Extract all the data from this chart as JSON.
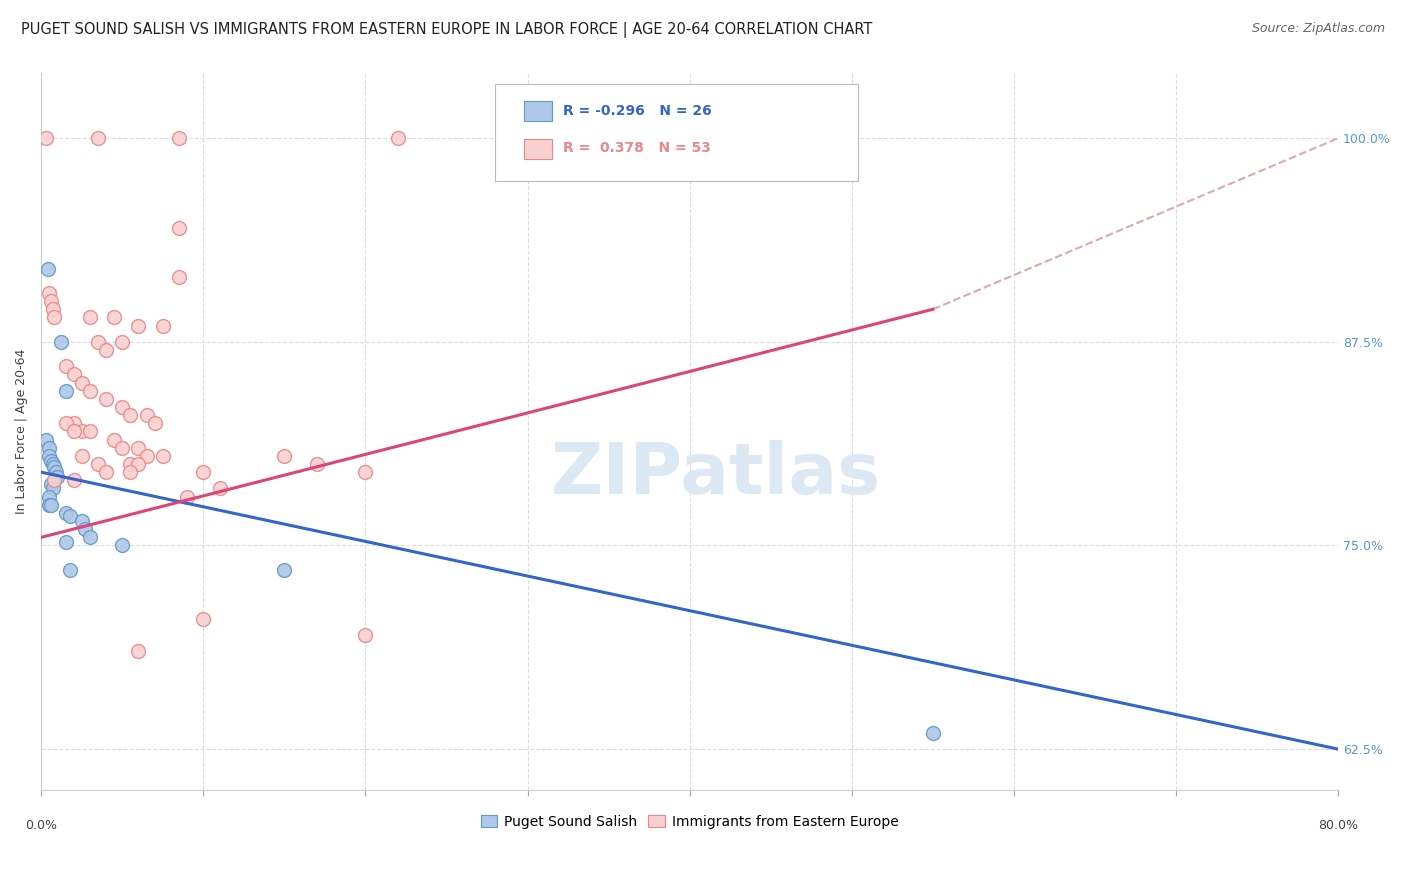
{
  "title": "PUGET SOUND SALISH VS IMMIGRANTS FROM EASTERN EUROPE IN LABOR FORCE | AGE 20-64 CORRELATION CHART",
  "source": "Source: ZipAtlas.com",
  "ylabel": "In Labor Force | Age 20-64",
  "legend_blue_r": "-0.296",
  "legend_blue_n": "26",
  "legend_pink_r": "0.378",
  "legend_pink_n": "53",
  "legend_blue_label": "Puget Sound Salish",
  "legend_pink_label": "Immigrants from Eastern Europe",
  "blue_scatter": [
    [
      0.4,
      92.0
    ],
    [
      1.2,
      87.5
    ],
    [
      1.5,
      84.5
    ],
    [
      0.3,
      81.5
    ],
    [
      0.5,
      81.0
    ],
    [
      0.5,
      80.5
    ],
    [
      0.6,
      80.2
    ],
    [
      0.7,
      80.0
    ],
    [
      0.8,
      79.8
    ],
    [
      0.9,
      79.5
    ],
    [
      1.0,
      79.2
    ],
    [
      0.6,
      78.8
    ],
    [
      0.7,
      78.5
    ],
    [
      0.5,
      78.0
    ],
    [
      0.5,
      77.5
    ],
    [
      0.6,
      77.5
    ],
    [
      1.5,
      77.0
    ],
    [
      1.8,
      76.8
    ],
    [
      2.5,
      76.5
    ],
    [
      2.7,
      76.0
    ],
    [
      3.0,
      75.5
    ],
    [
      1.5,
      75.2
    ],
    [
      5.0,
      75.0
    ],
    [
      1.8,
      73.5
    ],
    [
      15.0,
      73.5
    ],
    [
      55.0,
      63.5
    ]
  ],
  "pink_scatter": [
    [
      0.3,
      100.0
    ],
    [
      3.5,
      100.0
    ],
    [
      8.5,
      100.0
    ],
    [
      22.0,
      100.0
    ],
    [
      8.5,
      94.5
    ],
    [
      8.5,
      91.5
    ],
    [
      0.5,
      90.5
    ],
    [
      0.6,
      90.0
    ],
    [
      0.7,
      89.5
    ],
    [
      0.8,
      89.0
    ],
    [
      3.0,
      89.0
    ],
    [
      4.5,
      89.0
    ],
    [
      6.0,
      88.5
    ],
    [
      7.5,
      88.5
    ],
    [
      3.5,
      87.5
    ],
    [
      5.0,
      87.5
    ],
    [
      4.0,
      87.0
    ],
    [
      1.5,
      86.0
    ],
    [
      2.0,
      85.5
    ],
    [
      2.5,
      85.0
    ],
    [
      3.0,
      84.5
    ],
    [
      4.0,
      84.0
    ],
    [
      5.0,
      83.5
    ],
    [
      5.5,
      83.0
    ],
    [
      6.5,
      83.0
    ],
    [
      7.0,
      82.5
    ],
    [
      2.0,
      82.5
    ],
    [
      2.5,
      82.0
    ],
    [
      3.0,
      82.0
    ],
    [
      4.5,
      81.5
    ],
    [
      5.0,
      81.0
    ],
    [
      6.0,
      81.0
    ],
    [
      6.5,
      80.5
    ],
    [
      7.5,
      80.5
    ],
    [
      2.5,
      80.5
    ],
    [
      3.5,
      80.0
    ],
    [
      5.5,
      80.0
    ],
    [
      6.0,
      80.0
    ],
    [
      4.0,
      79.5
    ],
    [
      2.0,
      79.0
    ],
    [
      10.0,
      79.5
    ],
    [
      11.0,
      78.5
    ],
    [
      15.0,
      80.5
    ],
    [
      17.0,
      80.0
    ],
    [
      20.0,
      79.5
    ],
    [
      10.0,
      70.5
    ],
    [
      6.0,
      68.5
    ],
    [
      20.0,
      69.5
    ],
    [
      1.5,
      82.5
    ],
    [
      2.0,
      82.0
    ],
    [
      0.8,
      79.0
    ],
    [
      5.5,
      79.5
    ],
    [
      9.0,
      78.0
    ]
  ],
  "blue_line": [
    [
      0.0,
      79.5
    ],
    [
      80.0,
      62.5
    ]
  ],
  "pink_line_solid": [
    [
      0.0,
      75.5
    ],
    [
      55.0,
      89.5
    ]
  ],
  "pink_line_dash": [
    [
      55.0,
      89.5
    ],
    [
      80.0,
      100.0
    ]
  ],
  "bg_color": "#ffffff",
  "blue_color": "#adc8e8",
  "blue_edge_color": "#6699cc",
  "pink_color": "#f8d0d0",
  "pink_edge_color": "#e8888a",
  "blue_line_color": "#3366cc",
  "pink_line_color": "#dd4477",
  "pink_dash_color": "#ddaaaa",
  "grid_color": "#dddddd",
  "right_axis_color": "#5599cc",
  "title_fontsize": 10.5,
  "source_fontsize": 9,
  "axis_label_fontsize": 9,
  "legend_fontsize": 10,
  "marker_size": 100,
  "watermark_text": "ZIPatlas",
  "watermark_color": "#dde8f5",
  "xlim": [
    0,
    80
  ],
  "ylim": [
    60,
    104
  ],
  "yticks": [
    62.5,
    75.0,
    87.5,
    100.0
  ],
  "xtick_positions": [
    0,
    10,
    20,
    30,
    40,
    50,
    60,
    70,
    80
  ]
}
